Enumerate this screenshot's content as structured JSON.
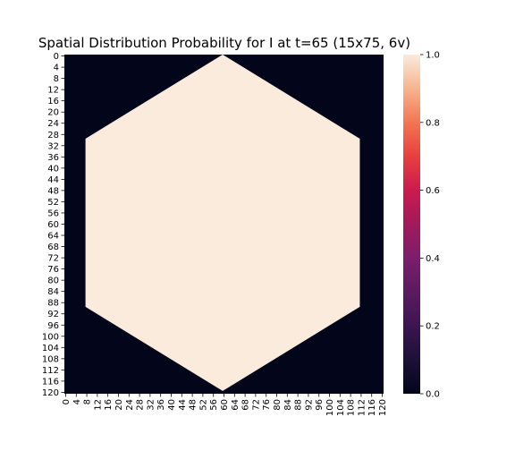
{
  "chart_data": {
    "type": "heatmap",
    "title": "Spatial Distribution Probability for I at t=65 (15x75, 6v)",
    "xlabel": "",
    "ylabel": "",
    "grid_size": 121,
    "x_tick_labels": [
      "0",
      "4",
      "8",
      "12",
      "16",
      "20",
      "24",
      "28",
      "32",
      "36",
      "40",
      "44",
      "48",
      "52",
      "56",
      "60",
      "64",
      "68",
      "72",
      "76",
      "80",
      "84",
      "88",
      "92",
      "96",
      "100",
      "104",
      "108",
      "112",
      "116",
      "120"
    ],
    "y_tick_labels": [
      "0",
      "4",
      "8",
      "12",
      "16",
      "20",
      "24",
      "28",
      "32",
      "36",
      "40",
      "44",
      "48",
      "52",
      "56",
      "60",
      "64",
      "68",
      "72",
      "76",
      "80",
      "84",
      "88",
      "92",
      "96",
      "100",
      "104",
      "108",
      "112",
      "116",
      "120"
    ],
    "colorbar": {
      "range": [
        0.0,
        1.0
      ],
      "tick_labels": [
        "0.0",
        "0.2",
        "0.4",
        "0.6",
        "0.8",
        "1.0"
      ],
      "colormap": "rocket"
    },
    "region": {
      "shape": "hexagon",
      "inside_value": 1.0,
      "outside_value": 0.0,
      "x_range": [
        8,
        112
      ],
      "y_range": [
        0,
        120
      ],
      "vertical_sides_y_range": [
        30,
        90
      ],
      "center_x": 60
    },
    "colors": {
      "low": "#03051a",
      "high": "#faebdd"
    }
  }
}
